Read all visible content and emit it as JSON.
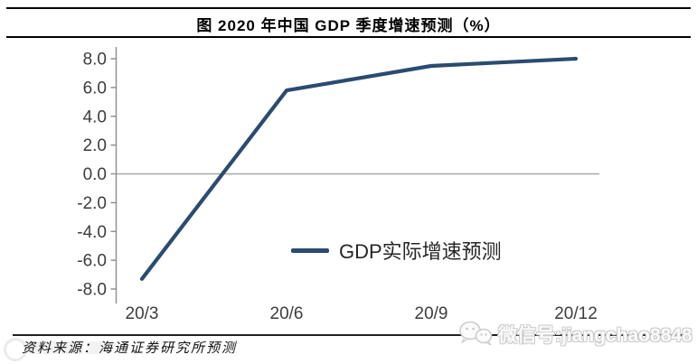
{
  "chart_data": {
    "type": "line",
    "title": "图 2020 年中国 GDP 季度增速预测（%）",
    "categories": [
      "20/3",
      "20/6",
      "20/9",
      "20/12"
    ],
    "series": [
      {
        "name": "GDP实际增速预测",
        "values": [
          -7.3,
          5.8,
          7.5,
          8.0
        ]
      }
    ],
    "xlabel": "",
    "ylabel": "",
    "unit": "%",
    "ylim": [
      -8.0,
      8.0
    ],
    "ytick_step": 2.0,
    "ytick_labels": [
      "8.0",
      "6.0",
      "4.0",
      "2.0",
      "0.0",
      "-2.0",
      "-4.0",
      "-6.0",
      "-8.0"
    ],
    "grid": "zero-line-only",
    "legend_position": "inside-bottom-right",
    "line_color": "#2b4b70",
    "zero_line_color": "#a8a8a8",
    "axis_color": "#8c8c8c",
    "label_color": "#3d3d3d"
  },
  "footer": {
    "source": "资料来源：海通证券研究所预测",
    "watermark": "微信号:jiangchao8848"
  },
  "icons": {
    "wechat": "two-chat-bubbles"
  }
}
